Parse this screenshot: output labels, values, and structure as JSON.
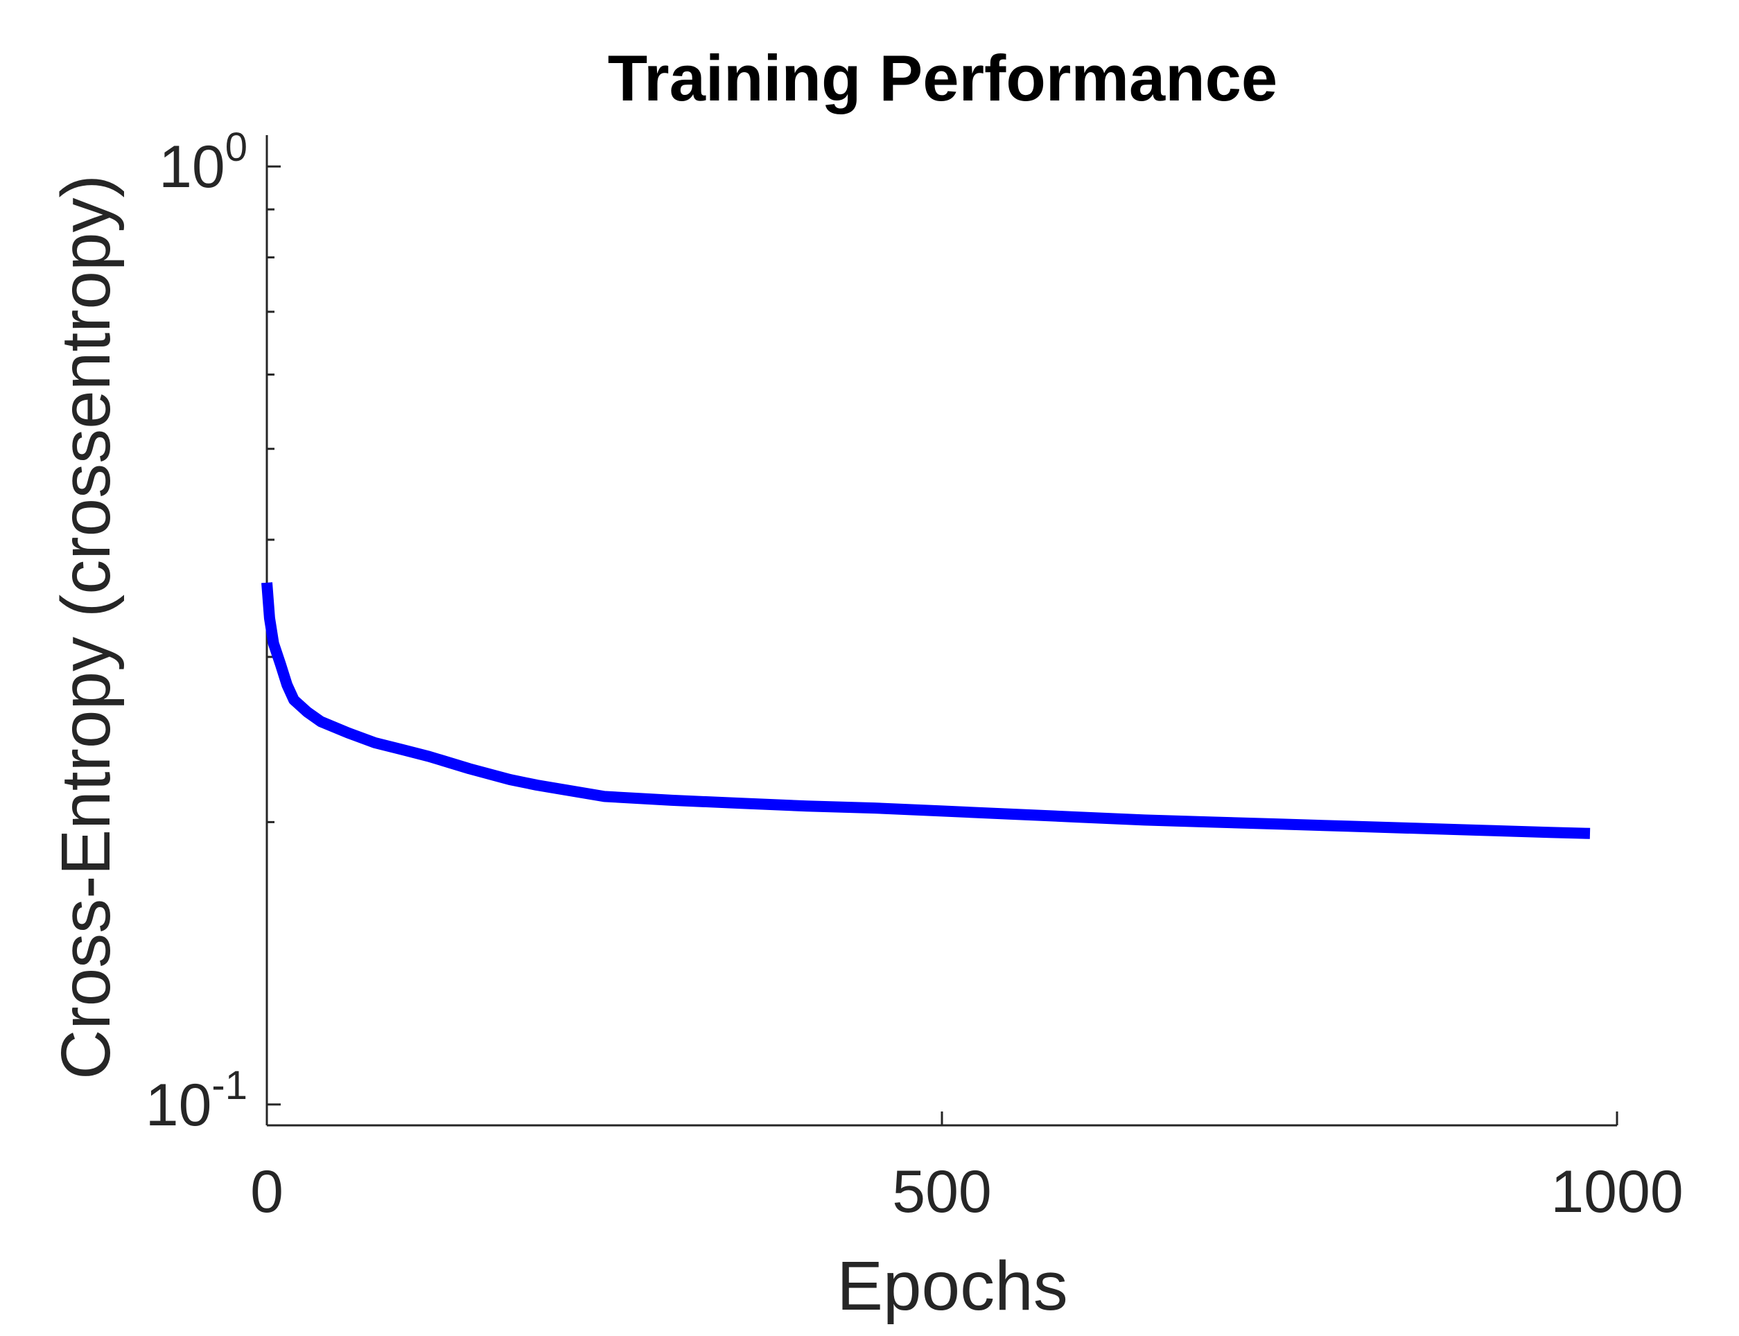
{
  "chart_data": {
    "type": "line",
    "title": "Training Performance",
    "xlabel": "Epochs",
    "ylabel": "Cross-Entropy  (crossentropy)",
    "xlim": [
      0,
      1000
    ],
    "ylim": [
      0.095,
      1.08
    ],
    "y_scale": "log",
    "grid": false,
    "legend": "none",
    "x_ticks": [
      {
        "value": 0,
        "label": "0"
      },
      {
        "value": 500,
        "label": "500"
      },
      {
        "value": 1000,
        "label": "1000"
      }
    ],
    "y_ticks": [
      {
        "value": 1,
        "base": "10",
        "exp": "0"
      },
      {
        "value": 0.1,
        "base": "10",
        "exp": "-1"
      }
    ],
    "y_minor_ticks": [
      0.2,
      0.3,
      0.4,
      0.5,
      0.6,
      0.7,
      0.8,
      0.9
    ],
    "line_color": "#0000ff",
    "series": [
      {
        "x": [
          0,
          2,
          5,
          10,
          15,
          20,
          30,
          40,
          60,
          80,
          100,
          120,
          150,
          180,
          200,
          250,
          300,
          350,
          400,
          450,
          500,
          550,
          600,
          650,
          700,
          750,
          800,
          850,
          900,
          950,
          980
        ],
        "values": [
          0.36,
          0.33,
          0.31,
          0.295,
          0.28,
          0.27,
          0.262,
          0.256,
          0.249,
          0.243,
          0.239,
          0.235,
          0.228,
          0.222,
          0.219,
          0.213,
          0.211,
          0.2095,
          0.208,
          0.207,
          0.2055,
          0.204,
          0.2025,
          0.201,
          0.2,
          0.199,
          0.198,
          0.197,
          0.196,
          0.195,
          0.1945
        ]
      }
    ]
  }
}
